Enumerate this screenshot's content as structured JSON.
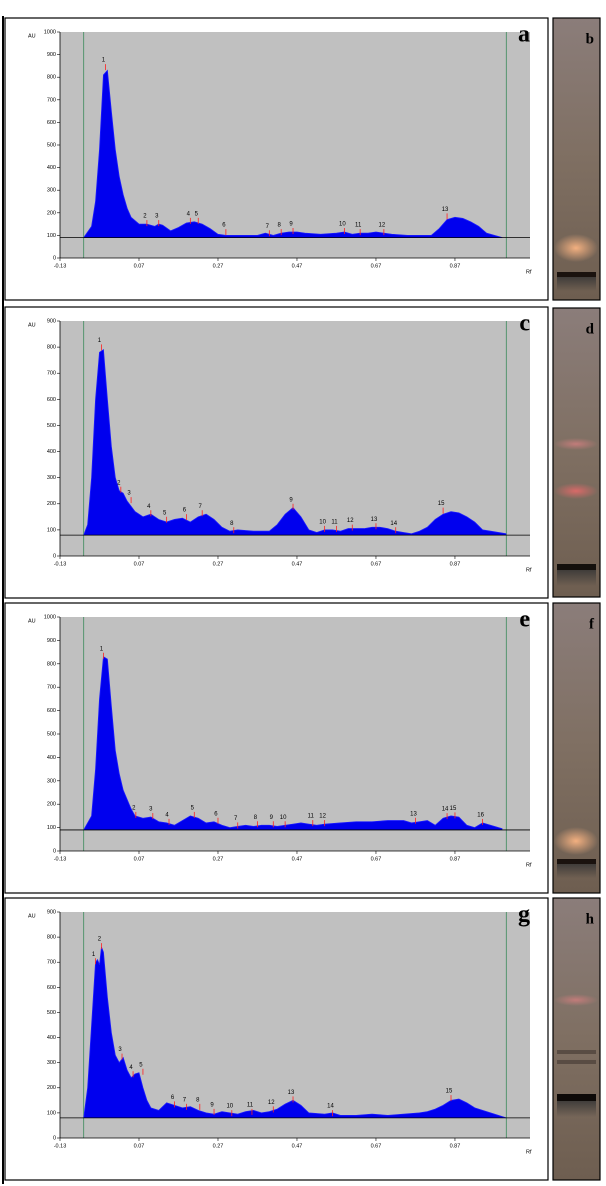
{
  "chart_data": [
    {
      "type": "area",
      "panel_label": "a",
      "plate_label": "b",
      "y_label": "AU",
      "x_label": "Rf",
      "xlim": [
        -0.13,
        1.06
      ],
      "xticks": [
        -0.13,
        0.07,
        0.27,
        0.47,
        0.67,
        0.87
      ],
      "ylim": [
        0,
        1000
      ],
      "yticks": [
        0,
        100,
        200,
        300,
        400,
        500,
        600,
        700,
        800,
        900,
        1000
      ],
      "baseline": 90,
      "front_lines": [
        -0.07,
        1.0
      ],
      "color": "#0000ee",
      "x": [
        -0.07,
        -0.05,
        -0.04,
        -0.03,
        -0.02,
        -0.01,
        0,
        0.01,
        0.02,
        0.03,
        0.04,
        0.05,
        0.07,
        0.09,
        0.11,
        0.12,
        0.13,
        0.15,
        0.17,
        0.19,
        0.21,
        0.23,
        0.25,
        0.27,
        0.29,
        0.33,
        0.37,
        0.39,
        0.41,
        0.43,
        0.45,
        0.47,
        0.49,
        0.53,
        0.57,
        0.59,
        0.61,
        0.63,
        0.65,
        0.67,
        0.69,
        0.71,
        0.75,
        0.79,
        0.81,
        0.83,
        0.85,
        0.87,
        0.89,
        0.91,
        0.93,
        0.95,
        0.99
      ],
      "values": [
        90,
        140,
        250,
        480,
        810,
        830,
        650,
        480,
        360,
        280,
        220,
        180,
        150,
        150,
        140,
        150,
        145,
        120,
        135,
        155,
        160,
        150,
        130,
        105,
        100,
        100,
        100,
        110,
        100,
        110,
        115,
        115,
        110,
        105,
        110,
        115,
        105,
        110,
        110,
        115,
        110,
        105,
        100,
        100,
        100,
        130,
        170,
        180,
        175,
        160,
        140,
        110,
        90
      ],
      "peaks": {
        "labels": [
          "1",
          "2",
          "3",
          "4",
          "5",
          "6",
          "7",
          "8",
          "9",
          "10",
          "11",
          "12",
          "13"
        ],
        "x": [
          -0.015,
          0.09,
          0.12,
          0.2,
          0.22,
          0.29,
          0.4,
          0.43,
          0.46,
          0.59,
          0.63,
          0.69,
          0.85
        ],
        "values": [
          840,
          150,
          150,
          160,
          160,
          110,
          105,
          110,
          115,
          115,
          110,
          110,
          180
        ]
      }
    },
    {
      "type": "area",
      "panel_label": "c",
      "plate_label": "d",
      "y_label": "AU",
      "x_label": "Rf",
      "xlim": [
        -0.13,
        1.06
      ],
      "xticks": [
        -0.13,
        0.07,
        0.27,
        0.47,
        0.67,
        0.87
      ],
      "ylim": [
        0,
        900
      ],
      "yticks": [
        0,
        100,
        200,
        300,
        400,
        500,
        600,
        700,
        800,
        900
      ],
      "baseline": 80,
      "front_lines": [
        -0.07,
        1.0
      ],
      "color": "#0000ee",
      "x": [
        -0.07,
        -0.06,
        -0.05,
        -0.04,
        -0.03,
        -0.02,
        -0.01,
        0,
        0.01,
        0.02,
        0.03,
        0.04,
        0.05,
        0.06,
        0.08,
        0.1,
        0.12,
        0.14,
        0.16,
        0.18,
        0.2,
        0.22,
        0.24,
        0.26,
        0.28,
        0.3,
        0.32,
        0.36,
        0.4,
        0.42,
        0.44,
        0.46,
        0.48,
        0.5,
        0.52,
        0.54,
        0.56,
        0.58,
        0.6,
        0.62,
        0.64,
        0.66,
        0.68,
        0.7,
        0.72,
        0.74,
        0.76,
        0.78,
        0.8,
        0.82,
        0.84,
        0.86,
        0.88,
        0.9,
        0.92,
        0.94,
        0.96,
        1.0
      ],
      "values": [
        80,
        120,
        300,
        600,
        780,
        790,
        600,
        420,
        300,
        250,
        240,
        210,
        190,
        170,
        150,
        160,
        140,
        130,
        140,
        145,
        130,
        150,
        160,
        140,
        110,
        95,
        100,
        95,
        95,
        120,
        160,
        185,
        150,
        100,
        90,
        100,
        100,
        95,
        105,
        105,
        105,
        110,
        110,
        105,
        95,
        90,
        85,
        95,
        110,
        140,
        160,
        170,
        165,
        150,
        130,
        100,
        95,
        85
      ],
      "peaks": {
        "labels": [
          "1",
          "2",
          "3",
          "4",
          "5",
          "6",
          "7",
          "8",
          "9",
          "10",
          "11",
          "12",
          "13",
          "14",
          "15"
        ],
        "x": [
          -0.025,
          0.024,
          0.05,
          0.1,
          0.14,
          0.19,
          0.23,
          0.31,
          0.46,
          0.54,
          0.57,
          0.61,
          0.67,
          0.72,
          0.84
        ],
        "values": [
          795,
          250,
          210,
          160,
          135,
          145,
          160,
          95,
          185,
          100,
          100,
          105,
          110,
          95,
          170
        ]
      }
    },
    {
      "type": "area",
      "panel_label": "e",
      "plate_label": "f",
      "y_label": "AU",
      "x_label": "Rf",
      "xlim": [
        -0.13,
        1.06
      ],
      "xticks": [
        -0.13,
        0.07,
        0.27,
        0.47,
        0.67,
        0.87
      ],
      "ylim": [
        0,
        1000
      ],
      "yticks": [
        0,
        100,
        200,
        300,
        400,
        500,
        600,
        700,
        800,
        900,
        1000
      ],
      "baseline": 90,
      "front_lines": [
        -0.07,
        1.0
      ],
      "color": "#0000ee",
      "x": [
        -0.07,
        -0.05,
        -0.04,
        -0.03,
        -0.02,
        -0.01,
        0,
        0.01,
        0.02,
        0.03,
        0.04,
        0.05,
        0.06,
        0.08,
        0.1,
        0.12,
        0.14,
        0.16,
        0.18,
        0.2,
        0.22,
        0.24,
        0.26,
        0.28,
        0.3,
        0.32,
        0.34,
        0.36,
        0.38,
        0.4,
        0.42,
        0.44,
        0.46,
        0.48,
        0.5,
        0.52,
        0.54,
        0.58,
        0.62,
        0.66,
        0.7,
        0.74,
        0.76,
        0.78,
        0.8,
        0.82,
        0.84,
        0.86,
        0.88,
        0.9,
        0.92,
        0.94,
        0.96,
        0.99
      ],
      "values": [
        90,
        150,
        350,
        650,
        830,
        820,
        620,
        430,
        330,
        260,
        220,
        180,
        150,
        140,
        145,
        125,
        120,
        110,
        130,
        150,
        140,
        120,
        125,
        110,
        100,
        105,
        110,
        105,
        110,
        110,
        105,
        110,
        115,
        120,
        115,
        110,
        115,
        120,
        125,
        125,
        130,
        130,
        120,
        125,
        130,
        110,
        140,
        150,
        145,
        110,
        100,
        120,
        110,
        95
      ],
      "peaks": {
        "labels": [
          "1",
          "2",
          "3",
          "4",
          "5",
          "6",
          "7",
          "8",
          "9",
          "10",
          "11",
          "12",
          "13",
          "14",
          "15",
          "16"
        ],
        "x": [
          -0.02,
          0.062,
          0.105,
          0.146,
          0.21,
          0.27,
          0.32,
          0.37,
          0.41,
          0.44,
          0.51,
          0.54,
          0.77,
          0.85,
          0.87,
          0.94
        ],
        "values": [
          830,
          150,
          145,
          120,
          150,
          125,
          105,
          110,
          110,
          110,
          115,
          115,
          125,
          145,
          148,
          120
        ]
      }
    },
    {
      "type": "area",
      "panel_label": "g",
      "plate_label": "h",
      "y_label": "AU",
      "x_label": "Rf",
      "xlim": [
        -0.13,
        1.06
      ],
      "xticks": [
        -0.13,
        0.07,
        0.27,
        0.47,
        0.67,
        0.87
      ],
      "ylim": [
        0,
        900
      ],
      "yticks": [
        0,
        100,
        200,
        300,
        400,
        500,
        600,
        700,
        800,
        900
      ],
      "baseline": 80,
      "front_lines": [
        -0.07,
        1.0
      ],
      "color": "#0000ee",
      "x": [
        -0.07,
        -0.06,
        -0.05,
        -0.04,
        -0.035,
        -0.03,
        -0.025,
        -0.02,
        -0.01,
        0,
        0.01,
        0.02,
        0.03,
        0.04,
        0.05,
        0.06,
        0.07,
        0.08,
        0.09,
        0.1,
        0.12,
        0.14,
        0.16,
        0.18,
        0.2,
        0.22,
        0.24,
        0.26,
        0.28,
        0.3,
        0.32,
        0.34,
        0.36,
        0.38,
        0.4,
        0.42,
        0.44,
        0.46,
        0.48,
        0.5,
        0.54,
        0.56,
        0.58,
        0.62,
        0.66,
        0.7,
        0.74,
        0.78,
        0.8,
        0.82,
        0.84,
        0.86,
        0.88,
        0.9,
        0.92,
        0.94,
        0.96,
        1.0
      ],
      "values": [
        80,
        200,
        450,
        700,
        710,
        690,
        760,
        740,
        560,
        420,
        330,
        300,
        320,
        270,
        240,
        255,
        260,
        200,
        150,
        120,
        110,
        140,
        130,
        120,
        125,
        110,
        100,
        95,
        105,
        100,
        95,
        105,
        110,
        100,
        105,
        115,
        135,
        150,
        130,
        100,
        95,
        100,
        90,
        90,
        95,
        90,
        95,
        100,
        105,
        115,
        130,
        150,
        155,
        140,
        120,
        110,
        100,
        80
      ],
      "peaks": {
        "labels": [
          "1",
          "2",
          "3",
          "4",
          "5",
          "6",
          "7",
          "8",
          "9",
          "10",
          "11",
          "12",
          "13",
          "14",
          "15"
        ],
        "x": [
          -0.04,
          -0.025,
          0.027,
          0.055,
          0.08,
          0.16,
          0.19,
          0.224,
          0.26,
          0.305,
          0.356,
          0.41,
          0.46,
          0.56,
          0.86
        ],
        "values": [
          700,
          760,
          320,
          250,
          260,
          130,
          120,
          120,
          100,
          95,
          100,
          110,
          150,
          95,
          155
        ]
      }
    }
  ]
}
